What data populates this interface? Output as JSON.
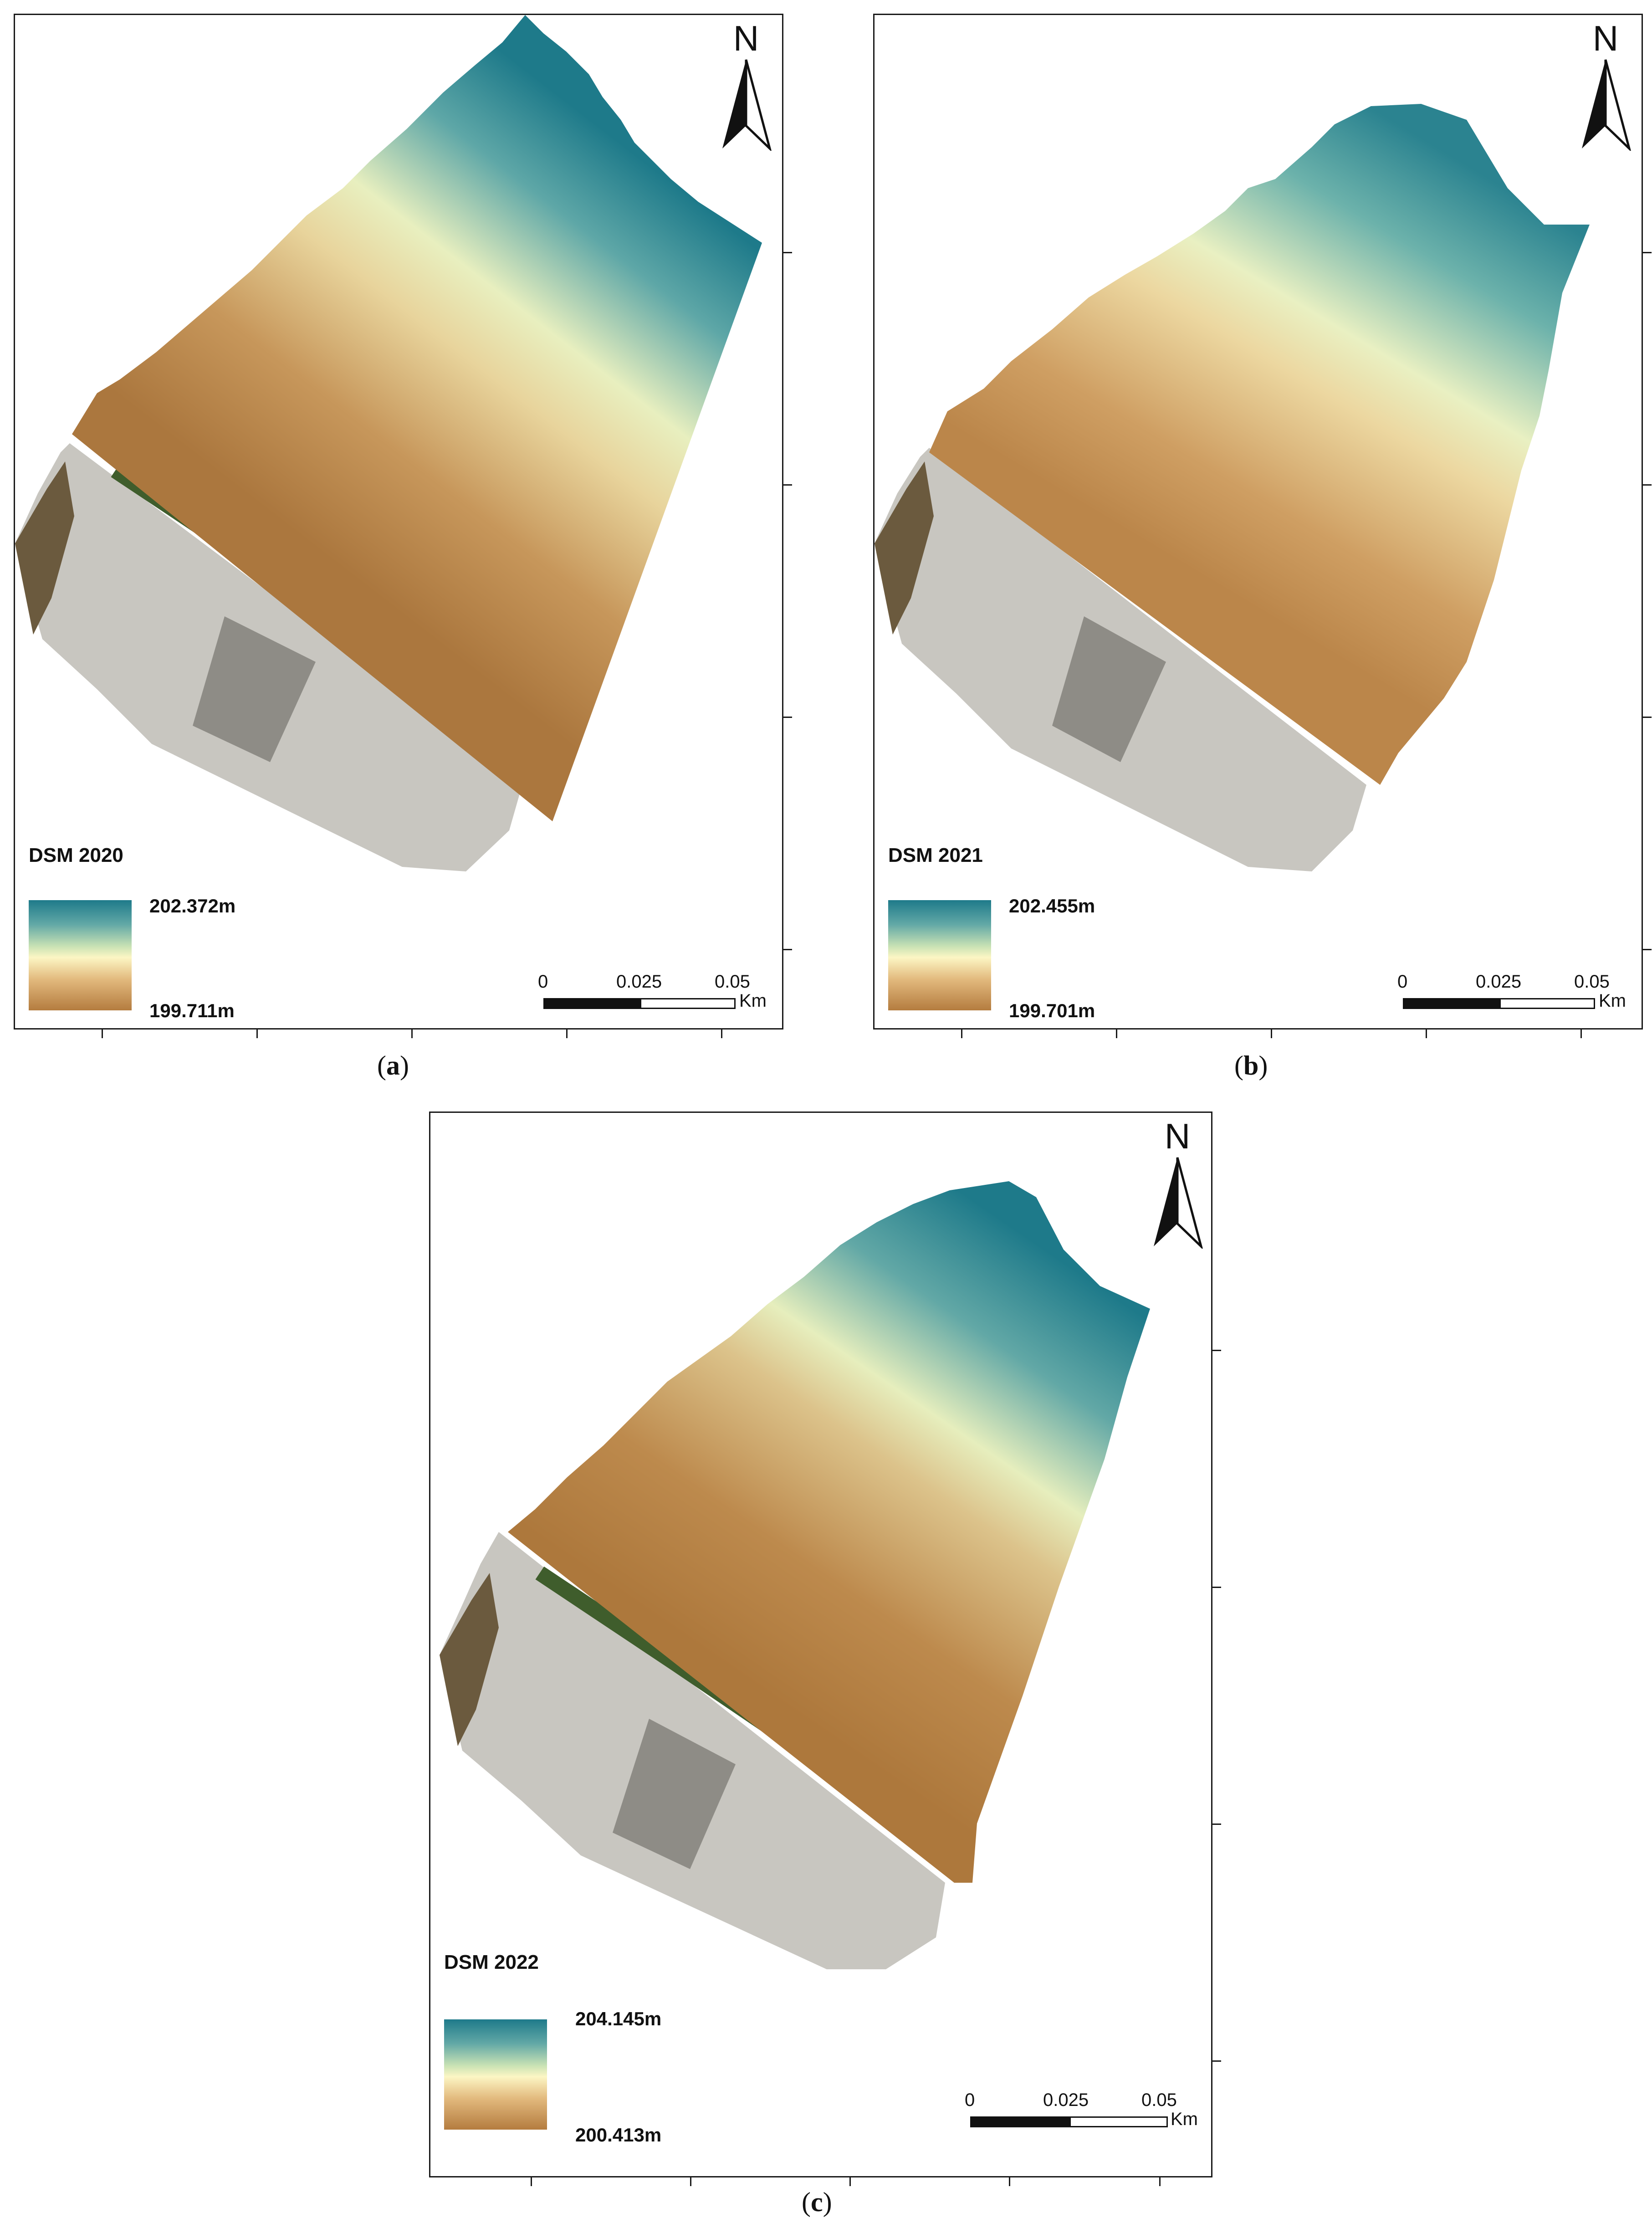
{
  "figure": {
    "panels": [
      {
        "id": "a",
        "legend_title": "DSM 2020",
        "max_label": "202.372m",
        "min_label": "199.711m",
        "caption_letter": "a",
        "north_label": "N",
        "scale": {
          "zero": "0",
          "mid": "0.025",
          "end": "0.05",
          "unit": "Km"
        }
      },
      {
        "id": "b",
        "legend_title": "DSM 2021",
        "max_label": "202.455m",
        "min_label": "199.701m",
        "caption_letter": "b",
        "north_label": "N",
        "scale": {
          "zero": "0",
          "mid": "0.025",
          "end": "0.05",
          "unit": "Km"
        }
      },
      {
        "id": "c",
        "legend_title": "DSM 2022",
        "max_label": "204.145m",
        "min_label": "200.413m",
        "caption_letter": "c",
        "north_label": "N",
        "scale": {
          "zero": "0",
          "mid": "0.025",
          "end": "0.05",
          "unit": "Km"
        }
      }
    ],
    "colors": {
      "high": "#1e7a8a",
      "mid": "#fcf6c4",
      "low": "#b47c3f",
      "gravel": "#c8c6c0",
      "vegetation": "#3f5d2c",
      "concrete": "#8e8c86",
      "frame": "#1a1a1a"
    },
    "icons": [
      "north-arrow-icon"
    ]
  }
}
